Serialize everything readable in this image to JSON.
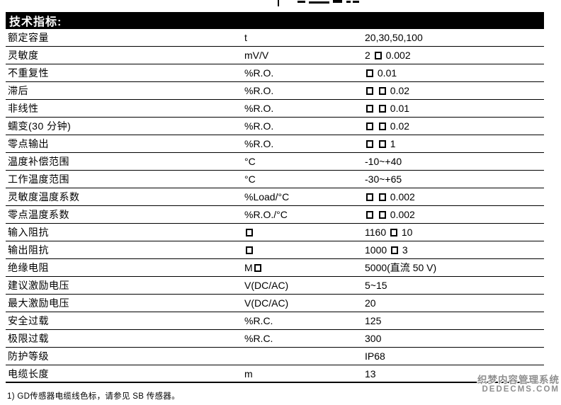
{
  "header": {
    "title": "技术指标:"
  },
  "table": {
    "rows": [
      {
        "label": "额定容量",
        "unit": "t",
        "value": "20,30,50,100"
      },
      {
        "label": "灵敏度",
        "unit": "mV/V",
        "value": "2 □ 0.002"
      },
      {
        "label": "不重复性",
        "unit": "%R.O.",
        "value": "□ 0.01"
      },
      {
        "label": "滞后",
        "unit": "%R.O.",
        "value": "□ □ 0.02"
      },
      {
        "label": "非线性",
        "unit": "%R.O.",
        "value": "□ □ 0.01"
      },
      {
        "label": "蠕变(30 分钟)",
        "unit": "%R.O.",
        "value": "□ □ 0.02"
      },
      {
        "label": "零点输出",
        "unit": "%R.O.",
        "value": "□ □ 1"
      },
      {
        "label": "温度补偿范围",
        "unit": "°C",
        "value": "-10~+40"
      },
      {
        "label": "工作温度范围",
        "unit": "°C",
        "value": "-30~+65"
      },
      {
        "label": "灵敏度温度系数",
        "unit": "%Load/°C",
        "value": "□ □ 0.002"
      },
      {
        "label": "零点温度系数",
        "unit": "%R.O./°C",
        "value": "□ □ 0.002"
      },
      {
        "label": "输入阻抗",
        "unit": "□",
        "value": "1160 □ 10"
      },
      {
        "label": "输出阻抗",
        "unit": "□",
        "value": "1000 □ 3"
      },
      {
        "label": "绝缘电阻",
        "unit": "M□",
        "value": "5000(直流 50 V)"
      },
      {
        "label": "建议激励电压",
        "unit": "V(DC/AC)",
        "value": "5~15"
      },
      {
        "label": "最大激励电压",
        "unit": "V(DC/AC)",
        "value": "20"
      },
      {
        "label": "安全过载",
        "unit": "%R.C.",
        "value": "125"
      },
      {
        "label": "极限过载",
        "unit": "%R.C.",
        "value": "300"
      },
      {
        "label": "防护等级",
        "unit": "",
        "value": "IP68"
      },
      {
        "label": "电缆长度",
        "unit": "m",
        "value": "13"
      }
    ]
  },
  "footnote": "1)  GD传感器电缆线色标，请参见 SB 传感器。",
  "watermark": {
    "line1": "织梦内容管理系统",
    "line2": "DEDECMS.COM"
  },
  "colors": {
    "text": "#000000",
    "header_bg": "#000000",
    "header_fg": "#ffffff",
    "watermark": "#8f8f8f"
  }
}
